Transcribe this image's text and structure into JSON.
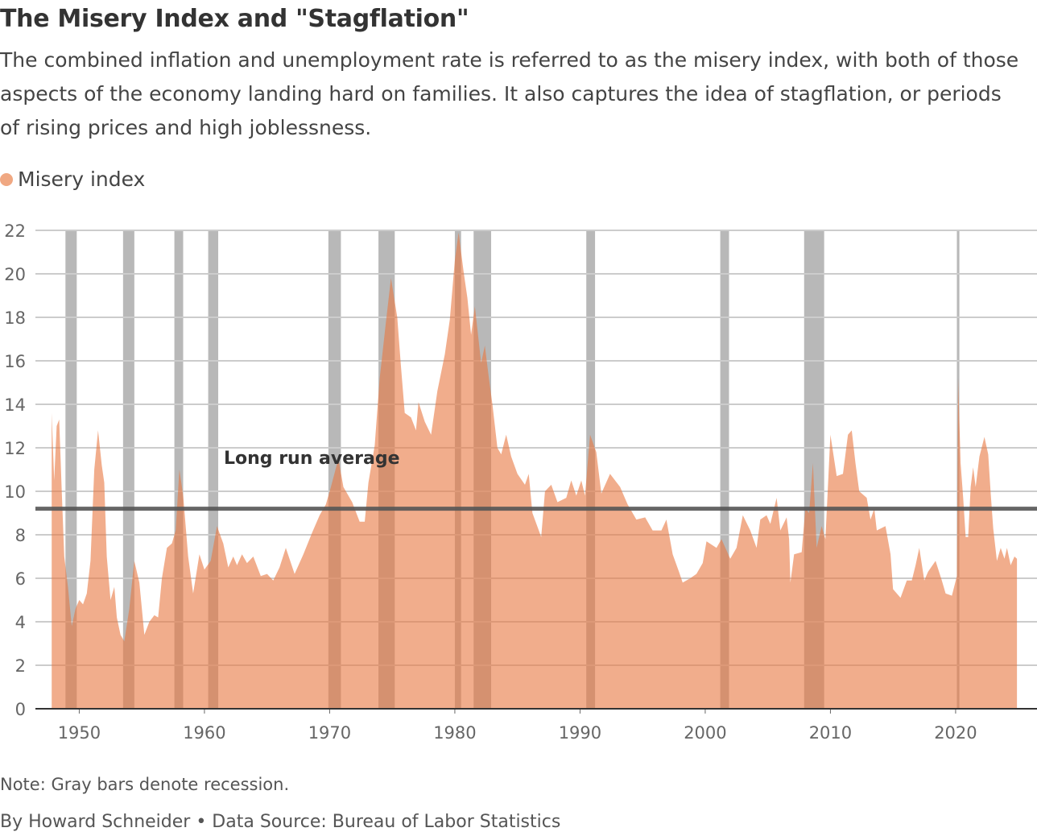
{
  "header": {
    "title": "The Misery Index and \"Stagflation\"",
    "subtitle": "The combined inflation and unemployment rate is referred to as the misery index, with both of those aspects of the economy landing hard on families. It also captures the idea of stagflation, or periods of rising prices and high joblessness."
  },
  "legend": {
    "label": "Misery index",
    "color": "#f0a882"
  },
  "footer": {
    "note": "Note: Gray bars denote recession.",
    "byline": "By Howard Schneider • Data Source: Bureau of Labor Statistics"
  },
  "chart_data": {
    "type": "area",
    "title": "The Misery Index and \"Stagflation\"",
    "xlabel": "",
    "ylabel": "",
    "xlim": [
      1946.5,
      2026.5
    ],
    "ylim": [
      0,
      22
    ],
    "grid": true,
    "legend_position": "top-left",
    "x_ticks": [
      1950,
      1960,
      1970,
      1980,
      1990,
      2000,
      2010,
      2020
    ],
    "x_tick_labels": [
      "1950",
      "1960",
      "1970",
      "1980",
      "1990",
      "2000",
      "2010",
      "2020"
    ],
    "y_ticks": [
      0,
      2,
      4,
      6,
      8,
      10,
      12,
      14,
      16,
      18,
      20,
      22
    ],
    "y_tick_labels": [
      "0",
      "2",
      "4",
      "6",
      "8",
      "10",
      "12",
      "14",
      "16",
      "18",
      "20",
      "22"
    ],
    "colors": {
      "area": "#e8773f",
      "recession": "#b8b8b8",
      "average": "#555555",
      "grid": "#cccccc"
    },
    "reference_line": {
      "label": "Long run average",
      "value": 9.2
    },
    "recessions": [
      [
        1948.9,
        1949.8
      ],
      [
        1953.5,
        1954.4
      ],
      [
        1957.6,
        1958.3
      ],
      [
        1960.3,
        1961.1
      ],
      [
        1969.9,
        1970.9
      ],
      [
        1973.9,
        1975.2
      ],
      [
        1980.0,
        1980.5
      ],
      [
        1981.5,
        1982.9
      ],
      [
        1990.5,
        1991.2
      ],
      [
        2001.2,
        2001.9
      ],
      [
        2007.9,
        2009.5
      ],
      [
        2020.1,
        2020.3
      ]
    ],
    "series": [
      {
        "name": "Misery index",
        "x": [
          1947.8,
          1948.0,
          1948.2,
          1948.4,
          1948.6,
          1948.8,
          1949.1,
          1949.4,
          1949.7,
          1950.0,
          1950.3,
          1950.6,
          1950.9,
          1951.2,
          1951.5,
          1951.8,
          1952.0,
          1952.2,
          1952.5,
          1952.8,
          1953.0,
          1953.3,
          1953.6,
          1954.0,
          1954.4,
          1954.8,
          1955.2,
          1955.6,
          1956.0,
          1956.3,
          1956.6,
          1957.0,
          1957.4,
          1957.7,
          1958.0,
          1958.3,
          1958.7,
          1959.1,
          1959.6,
          1960.0,
          1960.5,
          1961.0,
          1961.5,
          1961.9,
          1962.3,
          1962.6,
          1963.0,
          1963.4,
          1963.9,
          1964.5,
          1965.0,
          1965.5,
          1966.0,
          1966.5,
          1967.2,
          1967.9,
          1968.6,
          1969.2,
          1969.7,
          1970.1,
          1970.7,
          1971.1,
          1971.8,
          1972.4,
          1972.8,
          1973.1,
          1973.6,
          1974.0,
          1974.5,
          1974.9,
          1975.4,
          1975.7,
          1976.0,
          1976.5,
          1976.9,
          1977.1,
          1977.6,
          1978.1,
          1978.6,
          1979.2,
          1979.6,
          1980.0,
          1980.3,
          1980.7,
          1981.0,
          1981.3,
          1981.6,
          1982.1,
          1982.4,
          1982.7,
          1983.0,
          1983.4,
          1983.7,
          1984.1,
          1984.5,
          1985.0,
          1985.6,
          1985.9,
          1986.2,
          1986.9,
          1987.2,
          1987.7,
          1988.2,
          1988.9,
          1989.3,
          1989.7,
          1990.1,
          1990.4,
          1990.8,
          1991.3,
          1991.7,
          1992.4,
          1993.2,
          1993.8,
          1994.5,
          1995.2,
          1995.8,
          1996.5,
          1996.9,
          1997.4,
          1997.9,
          1998.2,
          1998.8,
          1999.3,
          1999.8,
          2000.1,
          2000.9,
          2001.3,
          2002.0,
          2002.5,
          2003.0,
          2003.6,
          2004.1,
          2004.4,
          2004.9,
          2005.2,
          2005.7,
          2006.0,
          2006.5,
          2006.7,
          2006.8,
          2007.1,
          2007.7,
          2008.0,
          2008.3,
          2008.6,
          2008.9,
          2009.3,
          2009.6,
          2010.0,
          2010.5,
          2011.0,
          2011.4,
          2011.7,
          2012.0,
          2012.3,
          2012.9,
          2013.2,
          2013.5,
          2013.7,
          2014.4,
          2014.8,
          2015.0,
          2015.6,
          2016.1,
          2016.5,
          2016.8,
          2017.1,
          2017.5,
          2017.8,
          2018.4,
          2018.9,
          2019.2,
          2019.7,
          2020.1,
          2020.2,
          2020.4,
          2020.6,
          2020.8,
          2021.0,
          2021.2,
          2021.4,
          2021.6,
          2021.9,
          2022.3,
          2022.6,
          2022.8,
          2023.0,
          2023.3,
          2023.6,
          2023.9,
          2024.1,
          2024.4,
          2024.7,
          2024.9
        ],
        "y": [
          13.6,
          10.5,
          13.0,
          13.3,
          10.0,
          7.0,
          5.6,
          3.8,
          4.6,
          5.0,
          4.8,
          5.3,
          6.8,
          11.0,
          12.8,
          11.2,
          10.4,
          7.0,
          5.0,
          5.6,
          4.2,
          3.4,
          3.1,
          4.6,
          6.8,
          5.8,
          3.4,
          4.0,
          4.3,
          4.2,
          6.0,
          7.4,
          7.6,
          8.2,
          11.0,
          9.8,
          7.0,
          5.3,
          7.1,
          6.4,
          6.8,
          8.4,
          7.6,
          6.5,
          7.0,
          6.6,
          7.1,
          6.7,
          7.0,
          6.1,
          6.2,
          5.9,
          6.5,
          7.4,
          6.2,
          7.1,
          8.1,
          8.9,
          9.4,
          10.2,
          11.5,
          10.2,
          9.5,
          8.6,
          8.6,
          10.4,
          12.1,
          15.2,
          17.8,
          19.8,
          18.0,
          15.7,
          13.6,
          13.4,
          12.8,
          14.1,
          13.2,
          12.6,
          14.6,
          16.3,
          17.9,
          20.6,
          21.9,
          20.1,
          18.9,
          17.2,
          18.5,
          15.9,
          16.7,
          15.3,
          14.0,
          12.0,
          11.7,
          12.6,
          11.6,
          10.8,
          10.3,
          10.8,
          9.0,
          7.9,
          10.0,
          10.3,
          9.5,
          9.7,
          10.5,
          9.8,
          10.5,
          9.8,
          12.6,
          11.8,
          9.9,
          10.8,
          10.2,
          9.4,
          8.7,
          8.8,
          8.2,
          8.2,
          8.7,
          7.1,
          6.3,
          5.8,
          6.0,
          6.2,
          6.7,
          7.7,
          7.4,
          7.8,
          6.9,
          7.4,
          8.9,
          8.2,
          7.4,
          8.7,
          8.9,
          8.5,
          9.7,
          8.2,
          8.8,
          7.8,
          5.8,
          7.1,
          7.2,
          9.2,
          9.0,
          11.3,
          7.4,
          8.4,
          7.8,
          12.6,
          10.7,
          10.8,
          12.6,
          12.8,
          11.3,
          10.0,
          9.7,
          8.7,
          9.2,
          8.2,
          8.4,
          7.1,
          5.5,
          5.1,
          5.9,
          5.9,
          6.6,
          7.4,
          5.9,
          6.3,
          6.8,
          5.9,
          5.3,
          5.2,
          6.1,
          15.2,
          11.3,
          9.7,
          7.9,
          7.9,
          10.2,
          11.1,
          10.2,
          11.6,
          12.5,
          11.7,
          9.9,
          8.3,
          6.8,
          7.4,
          6.9,
          7.4,
          6.6,
          7.0,
          6.9
        ]
      }
    ]
  }
}
